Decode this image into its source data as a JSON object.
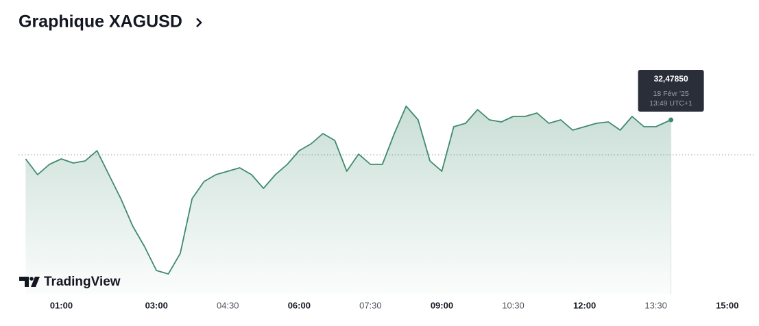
{
  "chart_data": {
    "type": "area",
    "title": "Graphique XAGUSD",
    "color": "#3f8a6d",
    "x": [
      "00:15",
      "00:30",
      "00:45",
      "01:00",
      "01:15",
      "01:30",
      "01:45",
      "02:00",
      "02:15",
      "02:30",
      "02:45",
      "03:00",
      "03:15",
      "03:30",
      "03:45",
      "04:00",
      "04:15",
      "04:30",
      "04:45",
      "05:00",
      "05:15",
      "05:30",
      "05:45",
      "06:00",
      "06:15",
      "06:30",
      "06:45",
      "07:00",
      "07:15",
      "07:30",
      "07:45",
      "08:00",
      "08:15",
      "08:30",
      "08:45",
      "09:00",
      "09:15",
      "09:30",
      "09:45",
      "10:00",
      "10:15",
      "10:30",
      "10:45",
      "11:00",
      "11:15",
      "11:30",
      "11:45",
      "12:00",
      "12:15",
      "12:30",
      "12:45",
      "13:00",
      "13:15",
      "13:30",
      "13:49"
    ],
    "values": [
      32.3645,
      32.3185,
      32.3485,
      32.3645,
      32.3525,
      32.3585,
      32.3885,
      32.3185,
      32.2485,
      32.1685,
      32.1085,
      32.0385,
      32.0285,
      32.0885,
      32.2485,
      32.2985,
      32.3185,
      32.3285,
      32.3385,
      32.3185,
      32.2785,
      32.3185,
      32.3485,
      32.3885,
      32.4085,
      32.4385,
      32.4185,
      32.3285,
      32.3785,
      32.3485,
      32.3485,
      32.4385,
      32.5185,
      32.4785,
      32.3585,
      32.3285,
      32.4585,
      32.4685,
      32.5085,
      32.4785,
      32.4725,
      32.4885,
      32.4885,
      32.4985,
      32.4685,
      32.4785,
      32.4485,
      32.4585,
      32.4685,
      32.4725,
      32.4485,
      32.4885,
      32.4585,
      32.4585,
      32.4785
    ],
    "baseline": 32.3765,
    "xlim": [
      "00:06",
      "15:34"
    ],
    "ylim": [
      31.9685,
      32.7085
    ],
    "xticks": [
      "01:00",
      "03:00",
      "04:30",
      "06:00",
      "07:30",
      "09:00",
      "10:30",
      "12:00",
      "13:30",
      "15:00"
    ],
    "tooltip": {
      "value_label": "32,47850",
      "date": "18 Févr '25",
      "time": "13:49 UTC+1"
    },
    "logo": "TradingView"
  }
}
